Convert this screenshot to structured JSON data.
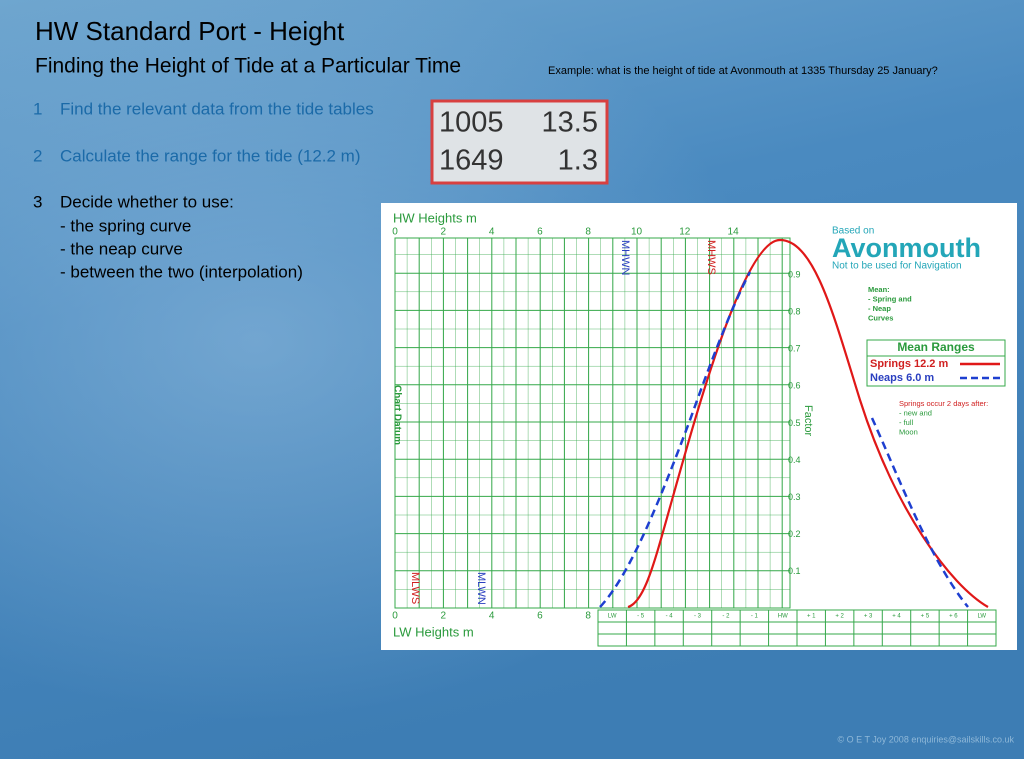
{
  "header": {
    "title": "HW Standard Port - Height",
    "subtitle": "Finding  the Height of Tide at a Particular Time",
    "example": "Example:  what is the height of tide at Avonmouth at 1335 Thursday 25 January?"
  },
  "steps": [
    {
      "number": "1",
      "text": "Find the relevant data from the tide tables"
    },
    {
      "number": "2",
      "text": "Calculate the range for the tide (12.2 m)"
    },
    {
      "number": "3",
      "text": "Decide whether to use:",
      "items": [
        "-   the spring curve",
        "-   the neap curve",
        "-   between the two (interpolation)"
      ]
    }
  ],
  "tide_table": {
    "rows": [
      [
        "1005",
        "13.5"
      ],
      [
        "1649",
        "1.3"
      ]
    ]
  },
  "diagram": {
    "hw_axis_label": "HW Heights m",
    "hw_ticks": [
      "0",
      "2",
      "4",
      "6",
      "8",
      "10",
      "12",
      "14"
    ],
    "lw_axis_label": "LW Heights m",
    "lw_ticks": [
      "0",
      "2",
      "4",
      "6",
      "8"
    ],
    "chart_datum": "Chart Datum",
    "factor_label": "Factor",
    "factor_ticks": [
      "0.9",
      "0.8",
      "0.7",
      "0.6",
      "0.5",
      "0.4",
      "0.3",
      "0.2",
      "0.1"
    ],
    "time_ticks": [
      "LW",
      "- 5",
      "- 4",
      "- 3",
      "- 2",
      "- 1",
      "HW",
      "+ 1",
      "+ 2",
      "+ 3",
      "+ 4",
      "+ 5",
      "+ 6",
      "LW"
    ],
    "markers": {
      "mhwn": "MHWN",
      "mhws": "MHWS",
      "mlws": "MLWS",
      "mlwn": "MLWN"
    },
    "based_on": "Based on",
    "port": "Avonmouth",
    "disclaimer": "Not to be used for Navigation",
    "mean_note": [
      "Mean:",
      "-  Spring and",
      "-  Neap",
      "Curves"
    ],
    "mean_ranges": {
      "title": "Mean Ranges",
      "springs": "Springs 12.2 m",
      "neaps": "Neaps    6.0 m"
    },
    "springs_note": [
      "Springs occur 2 days after:",
      "-  new and",
      "-  full",
      "Moon"
    ]
  },
  "footer": "© O E T Joy 2008 enquiries@sailskills.co.uk"
}
